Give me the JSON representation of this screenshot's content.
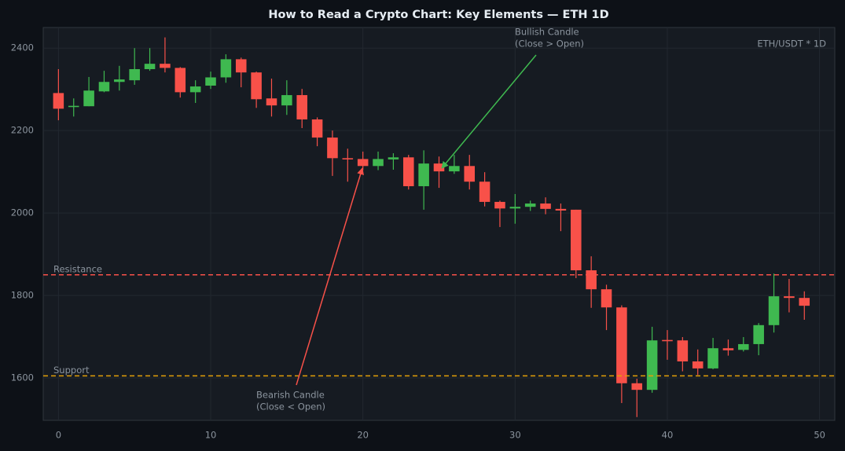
{
  "chart_data": {
    "type": "candlestick",
    "title": "How to Read a Crypto Chart: Key Elements — ETH 1D",
    "x": [
      0,
      1,
      2,
      3,
      4,
      5,
      6,
      7,
      8,
      9,
      10,
      11,
      12,
      13,
      14,
      15,
      16,
      17,
      18,
      19,
      20,
      21,
      22,
      23,
      24,
      25,
      26,
      27,
      28,
      29,
      30,
      31,
      32,
      33,
      34,
      35,
      36,
      37,
      38,
      39,
      40,
      41,
      42,
      43,
      44,
      45,
      46,
      47,
      48,
      49
    ],
    "open": [
      2291,
      2257,
      2259,
      2295,
      2318,
      2322,
      2349,
      2362,
      2352,
      2293,
      2309,
      2329,
      2373,
      2341,
      2278,
      2261,
      2286,
      2227,
      2183,
      2133,
      2131,
      2114,
      2130,
      2135,
      2065,
      2120,
      2101,
      2114,
      2076,
      2027,
      2011,
      2015,
      2023,
      2010,
      2008,
      1861,
      1815,
      1771,
      1587,
      1571,
      1692,
      1691,
      1640,
      1623,
      1672,
      1668,
      1682,
      1728,
      1798,
      1794
    ],
    "high": [
      2349,
      2278,
      2330,
      2345,
      2357,
      2400,
      2400,
      2426,
      2354,
      2322,
      2343,
      2385,
      2377,
      2343,
      2326,
      2322,
      2301,
      2232,
      2200,
      2156,
      2149,
      2149,
      2145,
      2141,
      2152,
      2137,
      2141,
      2141,
      2099,
      2030,
      2046,
      2030,
      2038,
      2023,
      2008,
      1895,
      1826,
      1776,
      1598,
      1724,
      1716,
      1699,
      1669,
      1697,
      1693,
      1699,
      1733,
      1853,
      1840,
      1810
    ],
    "low": [
      2225,
      2234,
      2259,
      2293,
      2297,
      2311,
      2345,
      2341,
      2280,
      2267,
      2301,
      2316,
      2305,
      2255,
      2234,
      2238,
      2206,
      2162,
      2090,
      2076,
      2104,
      2104,
      2105,
      2057,
      2008,
      2061,
      2095,
      2057,
      2016,
      1966,
      1974,
      2005,
      1997,
      1956,
      1842,
      1770,
      1716,
      1539,
      1505,
      1564,
      1644,
      1616,
      1607,
      1621,
      1654,
      1664,
      1655,
      1710,
      1759,
      1741
    ],
    "close": [
      2253,
      2260,
      2297,
      2318,
      2324,
      2349,
      2362,
      2352,
      2293,
      2307,
      2329,
      2373,
      2341,
      2276,
      2261,
      2286,
      2227,
      2183,
      2133,
      2130,
      2114,
      2131,
      2135,
      2065,
      2120,
      2101,
      2114,
      2076,
      2027,
      2011,
      2015,
      2023,
      2010,
      2006,
      1861,
      1815,
      1771,
      1587,
      1571,
      1691,
      1689,
      1640,
      1623,
      1672,
      1667,
      1682,
      1728,
      1798,
      1794,
      1775
    ],
    "up_color": "#3fb950",
    "down_color": "#f85149",
    "xlim": [
      -1,
      51
    ],
    "ylim": [
      1497,
      2450
    ],
    "xticks": [
      0,
      10,
      20,
      30,
      40,
      50
    ],
    "yticks": [
      1600,
      1800,
      2000,
      2200,
      2400
    ],
    "grid": true,
    "hlines": [
      {
        "label": "Resistance",
        "value": 1850,
        "color": "#f85149"
      },
      {
        "label": "Support",
        "value": 1605,
        "color": "#e3a008"
      }
    ],
    "annotations": [
      {
        "lines": [
          "Bullish Candle",
          "(Close > Open)"
        ],
        "color": "#3fb950"
      },
      {
        "lines": [
          "Bearish Candle",
          "(Close < Open)"
        ],
        "color": "#f85149"
      }
    ],
    "symbol_label": "ETH/USDT * 1D",
    "symbol_color": "#8b7cf6"
  }
}
